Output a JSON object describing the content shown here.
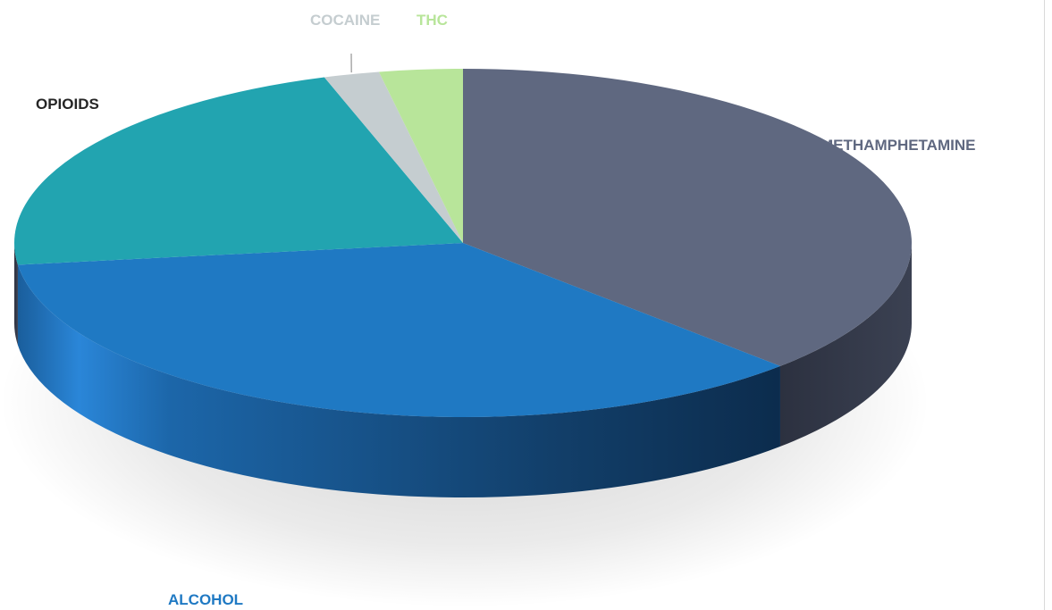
{
  "chart_data": {
    "type": "pie",
    "title": "",
    "style": "3d",
    "legend": "none",
    "slices": [
      {
        "label": "METHAMPHETAMINE",
        "value": 37.5,
        "color": "#5f6880",
        "label_color": "#5f6880"
      },
      {
        "label": "ALCOHOL",
        "value": 35.5,
        "color": "#1f79c3",
        "label_color": "#1f79c3"
      },
      {
        "label": "OPIOIDS",
        "value": 22,
        "color": "#22a4b0",
        "label_color": "#262626"
      },
      {
        "label": "COCAINE",
        "value": 2,
        "color": "#c5cdd0",
        "label_color": "#c5cdd0"
      },
      {
        "label": "THC",
        "value": 3,
        "color": "#b8e59a",
        "label_color": "#b8e59a"
      }
    ]
  }
}
